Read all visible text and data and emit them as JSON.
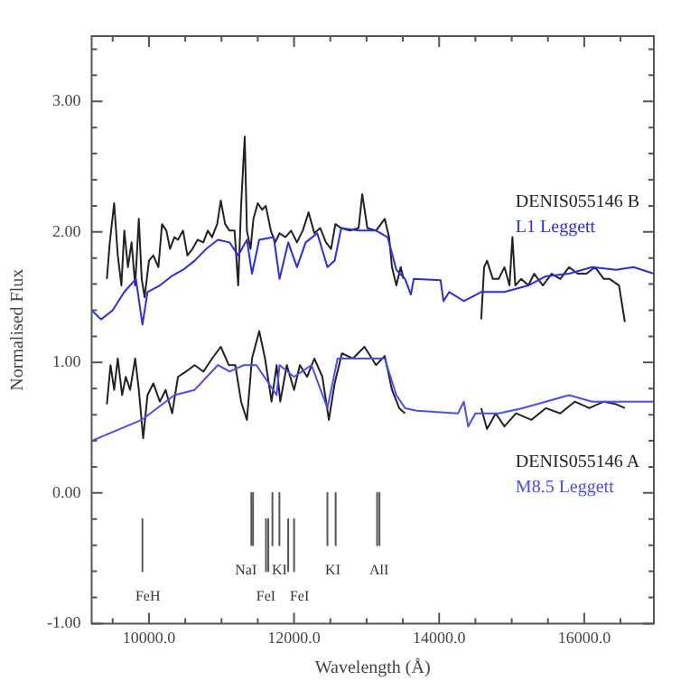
{
  "chart_data": {
    "type": "line",
    "xlabel": "Wavelength (Å)",
    "ylabel": "Normalised Flux",
    "xlim": [
      9210,
      16960
    ],
    "ylim": [
      -1,
      3.5
    ],
    "xticks": [
      {
        "value": 9500,
        "label": null
      },
      {
        "value": 10000,
        "label": "10000.0"
      },
      {
        "value": 10500,
        "label": null
      },
      {
        "value": 11000,
        "label": null
      },
      {
        "value": 11500,
        "label": null
      },
      {
        "value": 12000,
        "label": "12000.0"
      },
      {
        "value": 12500,
        "label": null
      },
      {
        "value": 13000,
        "label": null
      },
      {
        "value": 13500,
        "label": null
      },
      {
        "value": 14000,
        "label": "14000.0"
      },
      {
        "value": 14500,
        "label": null
      },
      {
        "value": 15000,
        "label": null
      },
      {
        "value": 15500,
        "label": null
      },
      {
        "value": 16000,
        "label": "16000.0"
      },
      {
        "value": 16500,
        "label": null
      }
    ],
    "yticks": [
      {
        "value": -1,
        "label": "-1.00"
      },
      {
        "value": -0.8,
        "label": null
      },
      {
        "value": -0.6,
        "label": null
      },
      {
        "value": -0.4,
        "label": null
      },
      {
        "value": -0.2,
        "label": null
      },
      {
        "value": 0,
        "label": "0.00"
      },
      {
        "value": 0.2,
        "label": null
      },
      {
        "value": 0.4,
        "label": null
      },
      {
        "value": 0.6,
        "label": null
      },
      {
        "value": 0.8,
        "label": null
      },
      {
        "value": 1,
        "label": "1.00"
      },
      {
        "value": 1.2,
        "label": null
      },
      {
        "value": 1.4,
        "label": null
      },
      {
        "value": 1.6,
        "label": null
      },
      {
        "value": 1.8,
        "label": null
      },
      {
        "value": 2,
        "label": "2.00"
      },
      {
        "value": 2.2,
        "label": null
      },
      {
        "value": 2.4,
        "label": null
      },
      {
        "value": 2.6,
        "label": null
      },
      {
        "value": 2.8,
        "label": null
      },
      {
        "value": 3,
        "label": "3.00"
      },
      {
        "value": 3.2,
        "label": null
      },
      {
        "value": 3.4,
        "label": null
      }
    ],
    "legend": false,
    "series": [
      {
        "name": "L1 Leggett",
        "color": "#2b2bf0",
        "x": [
          9210,
          9340,
          9500,
          9660,
          9820,
          9910,
          9980,
          10150,
          10310,
          10470,
          10630,
          10790,
          10950,
          11110,
          11230,
          11350,
          11420,
          11520,
          11720,
          11800,
          11920,
          12040,
          12160,
          12320,
          12460,
          12560,
          12650,
          12890,
          13130,
          13290,
          13410,
          13530,
          13610,
          13650,
          14020,
          14060,
          14140,
          14340,
          14580,
          14900,
          15230,
          15470,
          15790,
          16110,
          16440,
          16680,
          16960
        ],
        "values": [
          1.4,
          1.33,
          1.4,
          1.54,
          1.64,
          1.29,
          1.54,
          1.59,
          1.66,
          1.71,
          1.78,
          1.87,
          1.94,
          1.92,
          1.82,
          1.94,
          1.68,
          1.94,
          1.96,
          1.64,
          1.92,
          1.73,
          1.92,
          1.99,
          1.73,
          1.78,
          2.03,
          2.01,
          2.01,
          1.96,
          1.71,
          1.64,
          1.52,
          1.64,
          1.63,
          1.47,
          1.54,
          1.47,
          1.54,
          1.54,
          1.59,
          1.66,
          1.68,
          1.73,
          1.71,
          1.73,
          1.68
        ]
      },
      {
        "name": "DENIS055146 B",
        "color": "#222222",
        "x": [
          9420,
          9460,
          9520,
          9570,
          9620,
          9660,
          9710,
          9760,
          9810,
          9860,
          9900,
          9940,
          10000,
          10060,
          10130,
          10180,
          10240,
          10290,
          10350,
          10400,
          10470,
          10530,
          10600,
          10670,
          10750,
          10810,
          10870,
          10940,
          10990,
          11050,
          11110,
          11180,
          11230,
          11270,
          11320,
          11350,
          11400,
          11440,
          11500,
          11560,
          11610,
          11680,
          11740,
          11800,
          11880,
          11960,
          12040,
          12120,
          12200,
          12280,
          12360,
          12440,
          12510,
          12570,
          12650,
          12770,
          12890,
          12940,
          13010,
          13130,
          13250,
          13310,
          13350,
          13410,
          13470,
          13510,
          14000,
          14580,
          14620,
          14660,
          14740,
          14820,
          14900,
          14970,
          15010,
          15050,
          15130,
          15230,
          15310,
          15430,
          15550,
          15670,
          15790,
          15910,
          16030,
          16150,
          16270,
          16350,
          16480,
          16560
        ],
        "values": [
          1.64,
          1.92,
          2.22,
          1.82,
          1.59,
          2.01,
          1.73,
          1.92,
          1.59,
          2.1,
          1.64,
          1.5,
          1.78,
          1.82,
          1.73,
          2.06,
          2.01,
          1.87,
          1.96,
          1.94,
          2.01,
          1.82,
          1.87,
          1.94,
          1.92,
          2.01,
          1.96,
          2.06,
          2.24,
          2.06,
          2.01,
          2.01,
          1.59,
          2.2,
          2.73,
          2.01,
          1.87,
          2.1,
          2.22,
          2.17,
          2.2,
          2.01,
          1.92,
          1.99,
          1.96,
          2.01,
          1.92,
          2.01,
          2.15,
          1.99,
          2.03,
          1.92,
          1.87,
          2.06,
          2.03,
          2.01,
          2.03,
          2.29,
          2.03,
          2.01,
          2.1,
          1.96,
          1.73,
          1.59,
          1.73,
          1.64,
          null,
          1.33,
          1.73,
          1.78,
          1.64,
          1.64,
          1.73,
          1.59,
          1.96,
          1.59,
          1.64,
          1.59,
          1.68,
          1.59,
          1.68,
          1.64,
          1.73,
          1.68,
          1.68,
          1.73,
          1.64,
          1.64,
          1.59,
          1.31
        ]
      },
      {
        "name": "M8.5 Leggett",
        "color": "#4a4aff",
        "x": [
          9210,
          9900,
          10350,
          10630,
          10950,
          11110,
          11310,
          11480,
          11760,
          11800,
          12000,
          12240,
          12460,
          12600,
          12890,
          13250,
          13410,
          13530,
          13690,
          14260,
          14340,
          14400,
          14500,
          14820,
          15150,
          15470,
          15790,
          16110,
          16440,
          16680,
          16960
        ],
        "values": [
          0.4,
          0.56,
          0.75,
          0.79,
          0.98,
          0.93,
          0.98,
          0.98,
          0.75,
          0.98,
          0.89,
          0.98,
          0.65,
          1.03,
          1.03,
          1.03,
          0.75,
          0.65,
          0.63,
          0.61,
          0.7,
          0.51,
          0.61,
          0.61,
          0.65,
          0.7,
          0.75,
          0.7,
          0.7,
          0.7,
          0.7
        ]
      },
      {
        "name": "DENIS055146 A",
        "color": "#222222",
        "x": [
          9420,
          9470,
          9520,
          9570,
          9630,
          9680,
          9740,
          9810,
          9860,
          9920,
          9980,
          10060,
          10150,
          10230,
          10320,
          10400,
          10510,
          10630,
          10750,
          10870,
          10990,
          11100,
          11190,
          11270,
          11350,
          11420,
          11520,
          11600,
          11690,
          11760,
          11810,
          11900,
          12000,
          12080,
          12180,
          12280,
          12390,
          12480,
          12560,
          12660,
          12810,
          12970,
          13130,
          13250,
          13350,
          13450,
          13530,
          14000,
          14580,
          14660,
          14780,
          14900,
          15060,
          15270,
          15470,
          15670,
          15870,
          16070,
          16270,
          16440,
          16560
        ],
        "values": [
          0.68,
          0.98,
          0.79,
          1.03,
          0.75,
          0.89,
          0.79,
          1.03,
          0.79,
          0.42,
          0.75,
          0.84,
          0.7,
          0.79,
          0.61,
          0.89,
          0.93,
          0.98,
          0.93,
          1.03,
          1.12,
          0.98,
          0.98,
          0.7,
          0.56,
          1.03,
          1.24,
          1.03,
          0.7,
          0.98,
          0.7,
          0.98,
          0.79,
          0.98,
          0.89,
          1.03,
          0.89,
          0.56,
          0.84,
          1.07,
          1.03,
          1.12,
          0.98,
          1.05,
          0.79,
          0.65,
          0.61,
          null,
          0.65,
          0.49,
          0.61,
          0.51,
          0.61,
          0.56,
          0.65,
          0.61,
          0.7,
          0.65,
          0.7,
          0.68,
          0.65
        ]
      },
      {
        "color": "#555555",
        "x": [
          9910,
          9910
        ],
        "values": [
          -0.2,
          -0.6
        ]
      },
      {
        "color": "#555555",
        "x": [
          11411,
          11411
        ],
        "values": [
          0,
          -0.4
        ]
      },
      {
        "color": "#555555",
        "x": [
          11435,
          11435
        ],
        "values": [
          0,
          -0.4
        ]
      },
      {
        "color": "#555555",
        "x": [
          11613,
          11613
        ],
        "values": [
          -0.2,
          -0.6
        ]
      },
      {
        "color": "#555555",
        "x": [
          11645,
          11645
        ],
        "values": [
          -0.2,
          -0.6
        ]
      },
      {
        "color": "#555555",
        "x": [
          11702,
          11702
        ],
        "values": [
          0,
          -0.4
        ]
      },
      {
        "color": "#555555",
        "x": [
          11798,
          11798
        ],
        "values": [
          0,
          -0.4
        ]
      },
      {
        "color": "#555555",
        "x": [
          11919,
          11919
        ],
        "values": [
          -0.2,
          -0.6
        ]
      },
      {
        "color": "#555555",
        "x": [
          12000,
          12000
        ],
        "values": [
          -0.2,
          -0.6
        ]
      },
      {
        "color": "#555555",
        "x": [
          12460,
          12460
        ],
        "values": [
          0,
          -0.4
        ]
      },
      {
        "color": "#555555",
        "x": [
          12573,
          12573
        ],
        "values": [
          0,
          -0.4
        ]
      },
      {
        "color": "#555555",
        "x": [
          13145,
          13145
        ],
        "values": [
          0,
          -0.4
        ]
      },
      {
        "color": "#555555",
        "x": [
          13177,
          13177
        ],
        "values": [
          0,
          -0.4
        ]
      }
    ],
    "annotations": [
      {
        "text": "FeH",
        "x": 9910,
        "y": -0.6
      },
      {
        "text": "NaI",
        "x": 11411,
        "y": -0.4
      },
      {
        "text": "KI",
        "x": 11798,
        "y": -0.4
      },
      {
        "text": "FeI",
        "x": 11613,
        "y": -0.6
      },
      {
        "text": "FeI",
        "x": 12000,
        "y": -0.6
      },
      {
        "text": "KI",
        "x": 12460,
        "y": -0.4
      },
      {
        "text": "AlI",
        "x": 13145,
        "y": -0.4
      }
    ]
  }
}
